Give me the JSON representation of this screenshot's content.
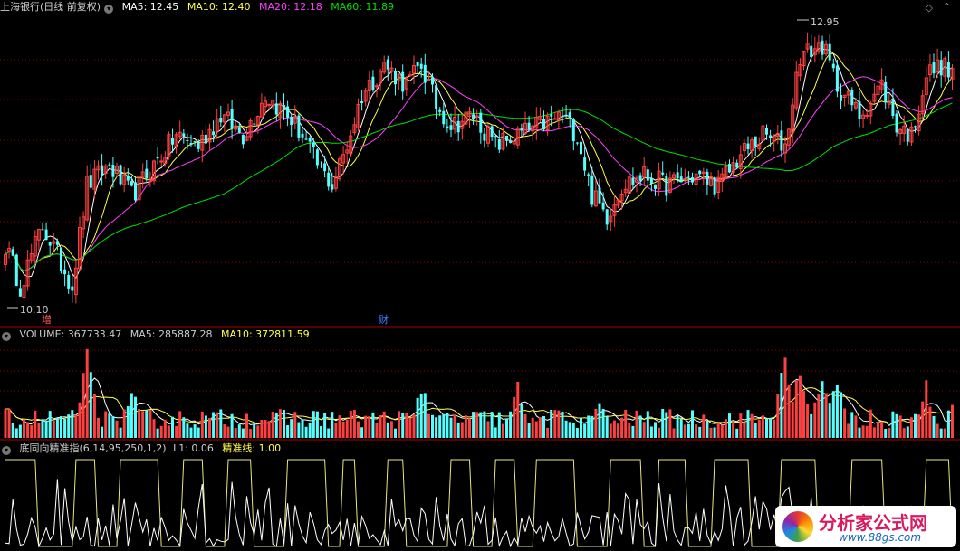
{
  "header_price": {
    "title": "上海银行(日线 前复权)",
    "ma5": "MA5: 12.45",
    "ma10": "MA10: 12.40",
    "ma20": "MA20: 12.18",
    "ma60": "MA60: 11.89"
  },
  "header_volume": {
    "volume": "VOLUME: 367733.47",
    "ma5": "MA5: 285887.28",
    "ma10": "MA10: 372811.59"
  },
  "header_indicator": {
    "name": "底同向精准指(6,14,95,250,1,2)",
    "l1": "L1: 0.06",
    "line": "精准线: 1.00"
  },
  "markers": {
    "high": "12.95",
    "low": "10.10",
    "event1": "增",
    "event2": "财"
  },
  "watermark": {
    "title": "分析家公式网",
    "url": "www.88gs.com"
  },
  "colors": {
    "up": "#ff4040",
    "down": "#54ffff",
    "ma5": "#ffffff",
    "ma10": "#ffff4a",
    "ma20": "#ff40ff",
    "ma60": "#00e000",
    "grid": "#8b0000",
    "indicator_white": "#ffffff",
    "indicator_yellow": "#e8e880"
  },
  "chart_data": {
    "type": "candlestick",
    "price_range": [
      10.1,
      12.95
    ],
    "anchors": [
      [
        0,
        10.7
      ],
      [
        4,
        10.3
      ],
      [
        10,
        10.9
      ],
      [
        14,
        10.6
      ],
      [
        18,
        10.3
      ],
      [
        22,
        11.3
      ],
      [
        28,
        11.5
      ],
      [
        34,
        11.2
      ],
      [
        40,
        11.5
      ],
      [
        46,
        11.8
      ],
      [
        52,
        11.7
      ],
      [
        58,
        12.0
      ],
      [
        64,
        11.8
      ],
      [
        70,
        12.2
      ],
      [
        76,
        12.0
      ],
      [
        80,
        11.8
      ],
      [
        84,
        11.5
      ],
      [
        88,
        11.3
      ],
      [
        92,
        11.7
      ],
      [
        96,
        12.2
      ],
      [
        102,
        12.5
      ],
      [
        108,
        12.3
      ],
      [
        112,
        12.5
      ],
      [
        116,
        12.1
      ],
      [
        120,
        11.9
      ],
      [
        126,
        12.0
      ],
      [
        132,
        11.7
      ],
      [
        138,
        11.8
      ],
      [
        144,
        11.9
      ],
      [
        150,
        12.0
      ],
      [
        154,
        11.8
      ],
      [
        158,
        11.2
      ],
      [
        162,
        11.0
      ],
      [
        166,
        11.3
      ],
      [
        172,
        11.4
      ],
      [
        178,
        11.3
      ],
      [
        186,
        11.4
      ],
      [
        192,
        11.3
      ],
      [
        198,
        11.6
      ],
      [
        204,
        11.8
      ],
      [
        210,
        11.7
      ],
      [
        214,
        12.6
      ],
      [
        220,
        12.7
      ],
      [
        224,
        12.3
      ],
      [
        230,
        12.0
      ],
      [
        236,
        12.3
      ],
      [
        240,
        11.9
      ],
      [
        244,
        11.8
      ],
      [
        248,
        12.4
      ],
      [
        252,
        12.5
      ],
      [
        255,
        12.4
      ]
    ],
    "ma_levels": {
      "ma5": 12.45,
      "ma10": 12.4,
      "ma20": 12.18,
      "ma60": 11.89
    },
    "volume": {
      "last": 367733.47,
      "ma5": 285887.28,
      "ma10": 372811.59,
      "base": 250000,
      "spikes": [
        [
          22,
          1000000
        ],
        [
          34,
          650000
        ],
        [
          112,
          700000
        ],
        [
          138,
          650000
        ],
        [
          160,
          460000
        ],
        [
          210,
          1000000
        ],
        [
          214,
          900000
        ],
        [
          220,
          880000
        ],
        [
          224,
          700000
        ],
        [
          248,
          650000
        ]
      ]
    },
    "indicator": {
      "l1": 0.06,
      "line": 1.0
    }
  }
}
